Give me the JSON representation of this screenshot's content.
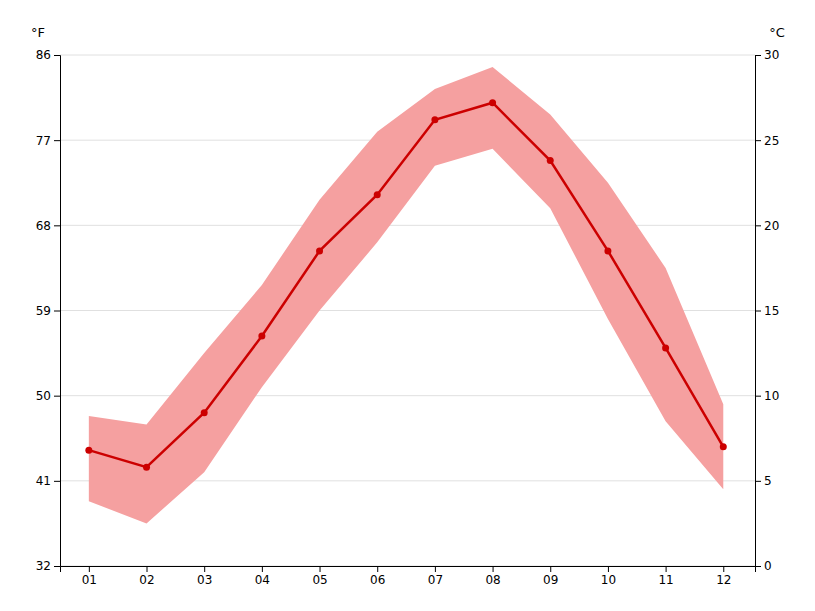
{
  "chart_data": {
    "type": "line",
    "x": [
      1,
      2,
      3,
      4,
      5,
      6,
      7,
      8,
      9,
      10,
      11,
      12
    ],
    "xlim": [
      0.5,
      12.55
    ],
    "xticks": [
      {
        "value": 1,
        "label": "01"
      },
      {
        "value": 2,
        "label": "02"
      },
      {
        "value": 3,
        "label": "03"
      },
      {
        "value": 4,
        "label": "04"
      },
      {
        "value": 5,
        "label": "05"
      },
      {
        "value": 6,
        "label": "06"
      },
      {
        "value": 7,
        "label": "07"
      },
      {
        "value": 8,
        "label": "08"
      },
      {
        "value": 9,
        "label": "09"
      },
      {
        "value": 10,
        "label": "10"
      },
      {
        "value": 11,
        "label": "11"
      },
      {
        "value": 12,
        "label": "12"
      }
    ],
    "ylabel": "°C",
    "ylim": [
      0,
      30
    ],
    "yticks": [
      0,
      5,
      10,
      15,
      20,
      25,
      30
    ],
    "y2label": "°F",
    "y2lim": [
      32,
      86
    ],
    "y2ticks": [
      32,
      41,
      50,
      59,
      68,
      77,
      86
    ],
    "grid": true,
    "series": [
      {
        "type": "band",
        "color": "#f5a0a0",
        "values": [
          8.8,
          8.3,
          12.5,
          16.5,
          21.5,
          25.5,
          28.0,
          29.3,
          26.5,
          22.5,
          17.5,
          9.5
        ],
        "low": [
          3.8,
          2.5,
          5.5,
          10.5,
          15.0,
          19.0,
          23.5,
          24.5,
          21.0,
          14.5,
          8.5,
          4.5
        ]
      },
      {
        "type": "line",
        "color": "#cc0000",
        "marker": "circle",
        "values": [
          6.8,
          5.8,
          9.0,
          13.5,
          18.5,
          21.8,
          26.2,
          27.2,
          23.8,
          18.5,
          12.8,
          7.0
        ]
      }
    ]
  }
}
